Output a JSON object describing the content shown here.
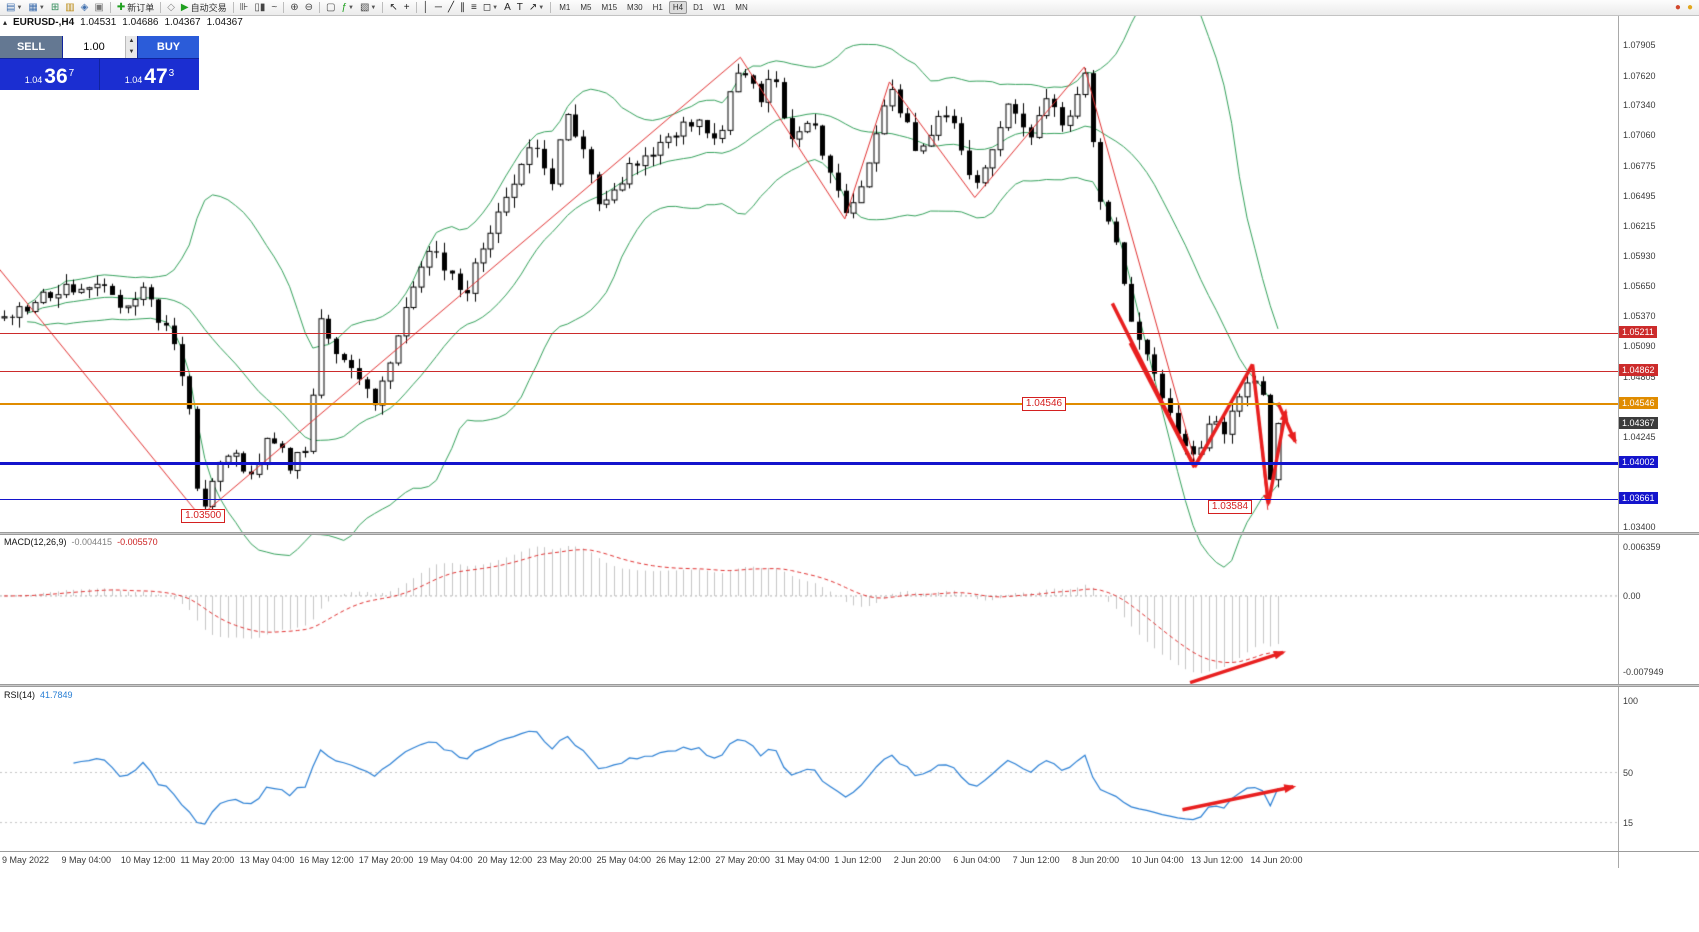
{
  "toolbar": {
    "groups": [
      [
        {
          "name": "new-chart-button",
          "glyph": "▤",
          "color": "#3f6fae",
          "caret": true
        },
        {
          "name": "profiles-button",
          "glyph": "▦",
          "color": "#3f6fae",
          "caret": true
        },
        {
          "name": "market-watch-button",
          "glyph": "⊞",
          "color": "#2e8b57"
        },
        {
          "name": "data-window-button",
          "glyph": "▥",
          "color": "#b8860b"
        },
        {
          "name": "navigator-button",
          "glyph": "◈",
          "color": "#3f6fae"
        },
        {
          "name": "terminal-button",
          "glyph": "▣",
          "color": "#777777"
        }
      ],
      [
        {
          "name": "new-order-button",
          "glyph": "✚",
          "color": "#1fa01f",
          "label": "新订单"
        }
      ],
      [
        {
          "name": "metaeditor-button",
          "glyph": "◇",
          "color": "#888888"
        },
        {
          "name": "autotrading-button",
          "glyph": "▶",
          "color": "#1fa01f",
          "label": "自动交易"
        }
      ],
      [
        {
          "name": "chart-bars-button",
          "glyph": "⊪",
          "color": "#444444"
        },
        {
          "name": "chart-candles-button",
          "glyph": "▯▮",
          "color": "#444444"
        },
        {
          "name": "chart-line-button",
          "glyph": "~",
          "color": "#444444"
        }
      ],
      [
        {
          "name": "zoom-in-button",
          "glyph": "⊕",
          "color": "#444444"
        },
        {
          "name": "zoom-out-button",
          "glyph": "⊖",
          "color": "#444444"
        }
      ],
      [
        {
          "name": "tile-windows-button",
          "glyph": "▢",
          "color": "#444444"
        },
        {
          "name": "indicators-button",
          "glyph": "ƒ",
          "color": "#1fa01f",
          "caret": true
        },
        {
          "name": "periods-button",
          "glyph": "▧",
          "color": "#444444",
          "caret": true
        }
      ],
      [
        {
          "name": "cursor-button",
          "glyph": "↖",
          "color": "#222222"
        },
        {
          "name": "crosshair-button",
          "glyph": "+",
          "color": "#222222"
        }
      ],
      [
        {
          "name": "vertical-line-button",
          "glyph": "│",
          "color": "#222222"
        },
        {
          "name": "horizontal-line-button",
          "glyph": "─",
          "color": "#222222"
        },
        {
          "name": "trendline-button",
          "glyph": "╱",
          "color": "#222222"
        },
        {
          "name": "channel-button",
          "glyph": "∥",
          "color": "#222222"
        },
        {
          "name": "fibonacci-button",
          "glyph": "≡",
          "color": "#222222"
        },
        {
          "name": "shapes-button",
          "glyph": "◻",
          "color": "#222222",
          "caret": true
        },
        {
          "name": "text-button",
          "glyph": "A",
          "color": "#222222"
        },
        {
          "name": "label-button",
          "glyph": "T",
          "color": "#222222"
        },
        {
          "name": "arrows-button",
          "glyph": "↗",
          "color": "#222222",
          "caret": true
        }
      ]
    ],
    "timeframes": [
      "M1",
      "M5",
      "M15",
      "M30",
      "H1",
      "H4",
      "D1",
      "W1",
      "MN"
    ],
    "active_timeframe": "H4",
    "right_icons": [
      {
        "name": "mql5-community-icon",
        "glyph": "●",
        "color": "#d2482e"
      },
      {
        "name": "notifications-icon",
        "glyph": "●",
        "color": "#e2a71e"
      }
    ]
  },
  "chart_header": {
    "symbol": "EURUSD-,H4",
    "open": "1.04531",
    "high": "1.04686",
    "low": "1.04367",
    "close": "1.04367"
  },
  "trade_panel": {
    "sell_label": "SELL",
    "buy_label": "BUY",
    "volume": "1.00",
    "sell_price": {
      "prefix": "1.04",
      "big": "36",
      "sup": "7"
    },
    "buy_price": {
      "prefix": "1.04",
      "big": "47",
      "sup": "3"
    }
  },
  "price_axis": {
    "ticks": [
      "1.07905",
      "1.07620",
      "1.07340",
      "1.07060",
      "1.06775",
      "1.06495",
      "1.06215",
      "1.05930",
      "1.05650",
      "1.05370",
      "1.05090",
      "1.04805",
      "1.04245",
      "1.03400"
    ],
    "tags": [
      {
        "value": "1.05211",
        "bg": "#cc2b2b"
      },
      {
        "value": "1.04862",
        "bg": "#cc2b2b"
      },
      {
        "value": "1.04546",
        "bg": "#e08c00"
      },
      {
        "value": "1.04367",
        "bg": "#3c3c3c"
      },
      {
        "value": "1.04002",
        "bg": "#1414cc"
      },
      {
        "value": "1.03661",
        "bg": "#1414cc"
      }
    ]
  },
  "hlines": [
    {
      "price": 1.05211,
      "color": "#cc2b2b",
      "width": 1
    },
    {
      "price": 1.04862,
      "color": "#cc2b2b",
      "width": 1
    },
    {
      "price": 1.04546,
      "color": "#e08c00",
      "width": 2
    },
    {
      "price": 1.04002,
      "color": "#1414cc",
      "width": 3
    },
    {
      "price": 1.03661,
      "color": "#1414cc",
      "width": 1
    }
  ],
  "price_boxes": [
    {
      "text": "1.03500",
      "u": 0.139,
      "price": 1.035
    },
    {
      "text": "1.04546",
      "u": 0.799,
      "price": 1.04546
    },
    {
      "text": "1.03584",
      "u": 0.945,
      "price": 1.03584
    }
  ],
  "macd": {
    "label": "MACD(12,26,9)",
    "main_value": "-0.004415",
    "signal_value": "-0.005570",
    "axis_max_label": "0.006359",
    "axis_zero_label": "0.00",
    "axis_min_label": "-0.007949"
  },
  "rsi": {
    "label": "RSI(14)",
    "value": "41.7849",
    "axis_labels": [
      100,
      50,
      15
    ]
  },
  "time_axis": {
    "labels": [
      "9 May 2022",
      "9 May 04:00",
      "10 May 12:00",
      "11 May 20:00",
      "13 May 04:00",
      "16 May 12:00",
      "17 May 20:00",
      "19 May 04:00",
      "20 May 12:00",
      "23 May 20:00",
      "25 May 04:00",
      "26 May 12:00",
      "27 May 20:00",
      "31 May 04:00",
      "1 Jun 12:00",
      "2 Jun 20:00",
      "6 Jun 04:00",
      "7 Jun 12:00",
      "8 Jun 20:00",
      "10 Jun 04:00",
      "13 Jun 12:00",
      "14 Jun 20:00"
    ]
  },
  "chart_data": {
    "type": "candlestick",
    "symbol": "EURUSD",
    "timeframe": "H4",
    "num_candles": 166,
    "seed": 20,
    "last_close": 1.04367,
    "price_axis_max": 1.08195,
    "price_axis_min": 1.03372,
    "colors": {
      "up_candle": "#ffffff",
      "down_candle": "#000000",
      "bands": "#33a05a",
      "zigzag": "#e03030",
      "arrow": "#e81f1f",
      "macd_hist": "#c6c6c6",
      "macd_signal": "#e03030",
      "rsi_line": "#2a7fd4"
    },
    "anchors": [
      [
        0.0,
        1.0533
      ],
      [
        0.035,
        1.0556
      ],
      [
        0.071,
        1.057
      ],
      [
        0.09,
        1.0546
      ],
      [
        0.11,
        1.0558
      ],
      [
        0.13,
        1.052
      ],
      [
        0.145,
        1.0452
      ],
      [
        0.154,
        1.0352
      ],
      [
        0.177,
        1.0415
      ],
      [
        0.193,
        1.0382
      ],
      [
        0.209,
        1.0428
      ],
      [
        0.224,
        1.0395
      ],
      [
        0.238,
        1.042
      ],
      [
        0.248,
        1.053
      ],
      [
        0.27,
        1.0492
      ],
      [
        0.291,
        1.0458
      ],
      [
        0.315,
        1.054
      ],
      [
        0.334,
        1.06
      ],
      [
        0.362,
        1.056
      ],
      [
        0.39,
        1.064
      ],
      [
        0.413,
        1.07
      ],
      [
        0.431,
        1.0658
      ],
      [
        0.44,
        1.0735
      ],
      [
        0.468,
        1.0642
      ],
      [
        0.49,
        1.0675
      ],
      [
        0.515,
        1.07
      ],
      [
        0.546,
        1.0722
      ],
      [
        0.56,
        1.07
      ],
      [
        0.578,
        1.0778
      ],
      [
        0.593,
        1.0742
      ],
      [
        0.605,
        1.0762
      ],
      [
        0.617,
        1.0695
      ],
      [
        0.633,
        1.0722
      ],
      [
        0.66,
        1.0633
      ],
      [
        0.68,
        1.068
      ],
      [
        0.695,
        1.0752
      ],
      [
        0.719,
        1.0688
      ],
      [
        0.742,
        1.0735
      ],
      [
        0.762,
        1.0655
      ],
      [
        0.79,
        1.074
      ],
      [
        0.805,
        1.07
      ],
      [
        0.817,
        1.0742
      ],
      [
        0.833,
        1.0715
      ],
      [
        0.848,
        1.0768
      ],
      [
        0.86,
        1.0645
      ],
      [
        0.872,
        1.0618
      ],
      [
        0.884,
        1.053
      ],
      [
        0.903,
        1.0478
      ],
      [
        0.919,
        1.0428
      ],
      [
        0.935,
        1.0404
      ],
      [
        0.947,
        1.0448
      ],
      [
        0.956,
        1.0422
      ],
      [
        0.97,
        1.0462
      ],
      [
        0.98,
        1.049
      ],
      [
        0.9855,
        1.0448
      ],
      [
        0.9885,
        1.0468
      ],
      [
        0.992,
        1.0358
      ],
      [
        0.997,
        1.0408
      ],
      [
        1.0,
        1.04367
      ]
    ],
    "zigzag": [
      [
        -0.02,
        1.0605
      ],
      [
        0.154,
        1.035
      ],
      [
        0.578,
        1.0779
      ],
      [
        0.66,
        1.0628
      ],
      [
        0.695,
        1.0756
      ],
      [
        0.762,
        1.0648
      ],
      [
        0.848,
        1.077
      ],
      [
        0.935,
        1.04
      ],
      [
        0.98,
        1.0492
      ],
      [
        0.992,
        1.0356
      ]
    ],
    "trend_arrows": [
      {
        "u1": 0.87,
        "p1": 1.0549,
        "u2": 0.9345,
        "p2": 1.0396,
        "head": false
      },
      {
        "u1": 0.884,
        "p1": 1.0512,
        "u2": 0.9345,
        "p2": 1.0396,
        "head": false
      },
      {
        "u1": 0.9345,
        "p1": 1.0396,
        "u2": 0.98,
        "p2": 1.0492,
        "head": false
      },
      {
        "u1": 0.98,
        "p1": 1.0492,
        "u2": 0.9925,
        "p2": 1.0362,
        "head": true
      },
      {
        "u1": 0.9925,
        "p1": 1.0362,
        "u2": 1.006,
        "p2": 1.0448,
        "head": true
      },
      {
        "u1": 1.0,
        "p1": 1.0456,
        "u2": 1.0135,
        "p2": 1.042,
        "head": true
      }
    ],
    "indicator_arrows": {
      "macd": {
        "u1": 0.931,
        "v1": -0.0086,
        "u2": 1.004,
        "v2": -0.0056
      },
      "rsi": {
        "u1": 0.925,
        "v1": 24,
        "u2": 1.012,
        "v2": 40
      }
    }
  }
}
